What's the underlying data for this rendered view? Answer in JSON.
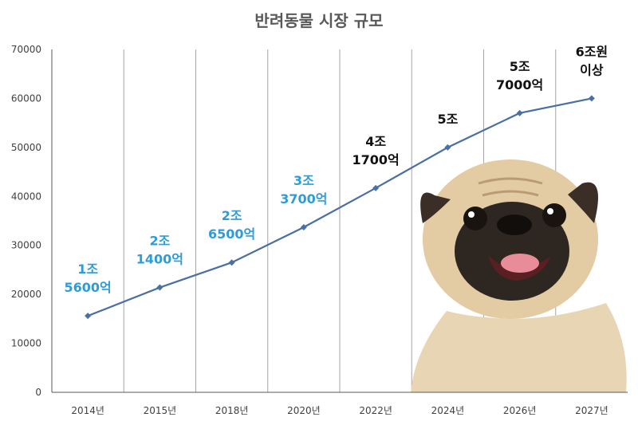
{
  "chart_data": {
    "type": "line",
    "title": "반려동물 시장 규모",
    "xlabel": "",
    "ylabel": "",
    "categories": [
      "2014년",
      "2015년",
      "2018년",
      "2020년",
      "2022년",
      "2024년",
      "2026년",
      "2027년"
    ],
    "values": [
      15600,
      21400,
      26500,
      33700,
      41700,
      50000,
      57000,
      60000
    ],
    "ylim": [
      0,
      70000
    ],
    "yticks": [
      "70000",
      "60000",
      "50000",
      "40000",
      "30000",
      "20000",
      "10000",
      "0"
    ],
    "grid": "vertical",
    "line_color": "#4a6fa5",
    "data_labels": [
      {
        "lines": [
          "1조",
          "5600억"
        ],
        "color": "#2e9cd8"
      },
      {
        "lines": [
          "2조",
          "1400억"
        ],
        "color": "#2e9cd8"
      },
      {
        "lines": [
          "2조",
          "6500억"
        ],
        "color": "#2e9cd8"
      },
      {
        "lines": [
          "3조",
          "3700억"
        ],
        "color": "#2e9cd8"
      },
      {
        "lines": [
          "4조",
          "1700억"
        ],
        "color": "#111111"
      },
      {
        "lines": [
          "5조"
        ],
        "color": "#111111"
      },
      {
        "lines": [
          "5조",
          "7000억"
        ],
        "color": "#111111"
      },
      {
        "lines": [
          "6조원",
          "이상"
        ],
        "color": "#111111"
      }
    ],
    "image": "pug-dog"
  }
}
